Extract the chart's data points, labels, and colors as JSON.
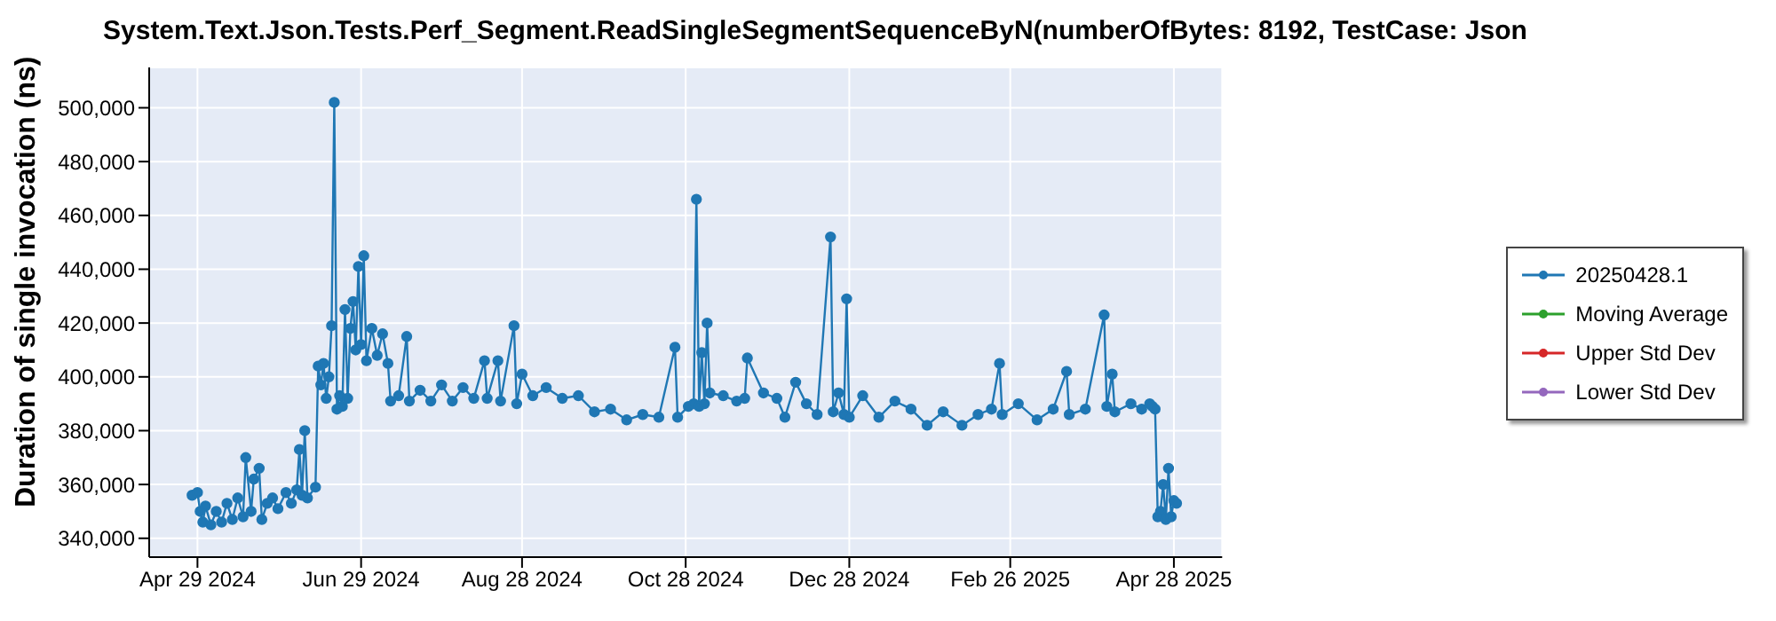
{
  "chart_data": {
    "type": "line",
    "title": "System.Text.Json.Tests.Perf_Segment.ReadSingleSegmentSequenceByN(numberOfBytes: 8192, TestCase: Json",
    "ylabel": "Duration of single invocation (ns)",
    "x": [
      "2024-04-27",
      "2024-04-29",
      "2024-04-30",
      "2024-05-01",
      "2024-05-02",
      "2024-05-04",
      "2024-05-06",
      "2024-05-08",
      "2024-05-10",
      "2024-05-12",
      "2024-05-14",
      "2024-05-16",
      "2024-05-17",
      "2024-05-19",
      "2024-05-20",
      "2024-05-22",
      "2024-05-23",
      "2024-05-25",
      "2024-05-27",
      "2024-05-29",
      "2024-06-01",
      "2024-06-03",
      "2024-06-05",
      "2024-06-06",
      "2024-06-07",
      "2024-06-08",
      "2024-06-09",
      "2024-06-12",
      "2024-06-13",
      "2024-06-14",
      "2024-06-15",
      "2024-06-16",
      "2024-06-17",
      "2024-06-18",
      "2024-06-19",
      "2024-06-20",
      "2024-06-21",
      "2024-06-22",
      "2024-06-23",
      "2024-06-24",
      "2024-06-25",
      "2024-06-26",
      "2024-06-27",
      "2024-06-28",
      "2024-06-29",
      "2024-06-30",
      "2024-07-01",
      "2024-07-03",
      "2024-07-05",
      "2024-07-07",
      "2024-07-09",
      "2024-07-10",
      "2024-07-13",
      "2024-07-16",
      "2024-07-17",
      "2024-07-21",
      "2024-07-25",
      "2024-07-29",
      "2024-08-02",
      "2024-08-06",
      "2024-08-10",
      "2024-08-14",
      "2024-08-15",
      "2024-08-19",
      "2024-08-20",
      "2024-08-25",
      "2024-08-26",
      "2024-08-28",
      "2024-09-01",
      "2024-09-06",
      "2024-09-12",
      "2024-09-18",
      "2024-09-24",
      "2024-09-30",
      "2024-10-06",
      "2024-10-12",
      "2024-10-18",
      "2024-10-24",
      "2024-10-25",
      "2024-10-29",
      "2024-10-31",
      "2024-11-01",
      "2024-11-02",
      "2024-11-03",
      "2024-11-04",
      "2024-11-05",
      "2024-11-06",
      "2024-11-11",
      "2024-11-16",
      "2024-11-19",
      "2024-11-20",
      "2024-11-26",
      "2024-12-01",
      "2024-12-04",
      "2024-12-08",
      "2024-12-12",
      "2024-12-16",
      "2024-12-21",
      "2024-12-22",
      "2024-12-24",
      "2024-12-26",
      "2024-12-27",
      "2024-12-28",
      "2025-01-02",
      "2025-01-08",
      "2025-01-14",
      "2025-01-20",
      "2025-01-26",
      "2025-02-01",
      "2025-02-08",
      "2025-02-14",
      "2025-02-19",
      "2025-02-22",
      "2025-02-23",
      "2025-03-01",
      "2025-03-08",
      "2025-03-14",
      "2025-03-19",
      "2025-03-20",
      "2025-03-26",
      "2025-04-02",
      "2025-04-03",
      "2025-04-05",
      "2025-04-06",
      "2025-04-12",
      "2025-04-16",
      "2025-04-19",
      "2025-04-20",
      "2025-04-21",
      "2025-04-22",
      "2025-04-23",
      "2025-04-24",
      "2025-04-25",
      "2025-04-26",
      "2025-04-27",
      "2025-04-28",
      "2025-04-29"
    ],
    "series": [
      {
        "name": "20250428.1",
        "color": "#1f77b4",
        "values": [
          356000,
          357000,
          350000,
          346000,
          352000,
          345000,
          350000,
          346000,
          353000,
          347000,
          355000,
          348000,
          370000,
          350000,
          362000,
          366000,
          347000,
          353000,
          355000,
          351000,
          357000,
          353000,
          358000,
          373000,
          356000,
          380000,
          355000,
          359000,
          404000,
          397000,
          405000,
          392000,
          400000,
          419000,
          502000,
          388000,
          393000,
          389000,
          425000,
          392000,
          418000,
          428000,
          410000,
          441000,
          412000,
          445000,
          406000,
          418000,
          408000,
          416000,
          405000,
          391000,
          393000,
          415000,
          391000,
          395000,
          391000,
          397000,
          391000,
          396000,
          392000,
          406000,
          392000,
          406000,
          391000,
          419000,
          390000,
          401000,
          393000,
          396000,
          392000,
          393000,
          387000,
          388000,
          384000,
          386000,
          385000,
          411000,
          385000,
          389000,
          390000,
          466000,
          389000,
          409000,
          390000,
          420000,
          394000,
          393000,
          391000,
          392000,
          407000,
          394000,
          392000,
          385000,
          398000,
          390000,
          386000,
          452000,
          387000,
          394000,
          386000,
          429000,
          385000,
          393000,
          385000,
          391000,
          388000,
          382000,
          387000,
          382000,
          386000,
          388000,
          405000,
          386000,
          390000,
          384000,
          388000,
          402000,
          386000,
          388000,
          423000,
          389000,
          401000,
          387000,
          390000,
          388000,
          390000,
          389000,
          388000,
          348000,
          350000,
          360000,
          347000,
          366000,
          348000,
          354000,
          353000
        ]
      },
      {
        "name": "Moving Average",
        "color": "#2ca02c",
        "values": [
          null,
          null,
          null,
          null,
          null,
          null,
          null,
          null,
          null,
          null,
          null,
          null,
          null,
          null,
          null,
          null,
          null,
          null,
          null,
          null,
          null,
          null,
          null,
          null,
          null,
          null,
          null,
          null,
          null,
          null,
          null,
          null,
          null,
          null,
          null,
          null,
          null,
          null,
          null,
          null,
          null,
          null,
          null,
          null,
          null,
          null,
          null,
          null,
          null,
          null,
          null,
          null,
          null,
          null,
          null,
          null,
          null,
          null,
          null,
          null,
          null,
          null,
          null,
          null,
          null,
          null,
          null,
          null,
          null,
          null,
          null,
          null,
          null,
          null,
          null,
          null,
          null,
          null,
          null,
          null,
          null,
          null,
          null,
          null,
          null,
          null,
          null,
          null,
          null,
          null,
          null,
          null,
          null,
          null,
          null,
          null,
          null,
          null,
          null,
          null,
          null,
          null,
          null,
          null,
          null,
          null,
          null,
          null,
          null,
          null,
          null,
          null,
          null,
          null,
          null,
          null,
          null,
          null,
          null,
          null,
          null,
          null,
          null,
          null,
          null,
          null,
          null,
          null,
          null,
          null,
          null,
          null,
          null,
          null,
          null,
          null,
          null
        ]
      },
      {
        "name": "Upper Std Dev",
        "color": "#d62728",
        "values": [
          null,
          null,
          null,
          null,
          null,
          null,
          null,
          null,
          null,
          null,
          null,
          null,
          null,
          null,
          null,
          null,
          null,
          null,
          null,
          null,
          null,
          null,
          null,
          null,
          null,
          null,
          null,
          null,
          null,
          null,
          null,
          null,
          null,
          null,
          null,
          null,
          null,
          null,
          null,
          null,
          null,
          null,
          null,
          null,
          null,
          null,
          null,
          null,
          null,
          null,
          null,
          null,
          null,
          null,
          null,
          null,
          null,
          null,
          null,
          null,
          null,
          null,
          null,
          null,
          null,
          null,
          null,
          null,
          null,
          null,
          null,
          null,
          null,
          null,
          null,
          null,
          null,
          null,
          null,
          null,
          null,
          null,
          null,
          null,
          null,
          null,
          null,
          null,
          null,
          null,
          null,
          null,
          null,
          null,
          null,
          null,
          null,
          null,
          null,
          null,
          null,
          null,
          null,
          null,
          null,
          null,
          null,
          null,
          null,
          null,
          null,
          null,
          null,
          null,
          null,
          null,
          null,
          null,
          null,
          null,
          null,
          null,
          null,
          null,
          null,
          null,
          null,
          null,
          null,
          null,
          null,
          null,
          null,
          null,
          null,
          null,
          null
        ]
      },
      {
        "name": "Lower Std Dev",
        "color": "#9467bd",
        "values": [
          null,
          null,
          null,
          null,
          null,
          null,
          null,
          null,
          null,
          null,
          null,
          null,
          null,
          null,
          null,
          null,
          null,
          null,
          null,
          null,
          null,
          null,
          null,
          null,
          null,
          null,
          null,
          null,
          null,
          null,
          null,
          null,
          null,
          null,
          null,
          null,
          null,
          null,
          null,
          null,
          null,
          null,
          null,
          null,
          null,
          null,
          null,
          null,
          null,
          null,
          null,
          null,
          null,
          null,
          null,
          null,
          null,
          null,
          null,
          null,
          null,
          null,
          null,
          null,
          null,
          null,
          null,
          null,
          null,
          null,
          null,
          null,
          null,
          null,
          null,
          null,
          null,
          null,
          null,
          null,
          null,
          null,
          null,
          null,
          null,
          null,
          null,
          null,
          null,
          null,
          null,
          null,
          null,
          null,
          null,
          null,
          null,
          null,
          null,
          null,
          null,
          null,
          null,
          null,
          null,
          null,
          null,
          null,
          null,
          null,
          null,
          null,
          null,
          null,
          null,
          null,
          null,
          null,
          null,
          null,
          null,
          null,
          null,
          null,
          null,
          null,
          null,
          null,
          null,
          null,
          null,
          null,
          null,
          null,
          null,
          null,
          null
        ]
      }
    ],
    "xlim": [
      "2024-04-11",
      "2025-05-16"
    ],
    "xticks": [
      {
        "value": "2024-04-29",
        "label": "Apr 29 2024"
      },
      {
        "value": "2024-06-29",
        "label": "Jun 29 2024"
      },
      {
        "value": "2024-08-28",
        "label": "Aug 28 2024"
      },
      {
        "value": "2024-10-28",
        "label": "Oct 28 2024"
      },
      {
        "value": "2024-12-28",
        "label": "Dec 28 2024"
      },
      {
        "value": "2025-02-26",
        "label": "Feb 26 2025"
      },
      {
        "value": "2025-04-28",
        "label": "Apr 28 2025"
      }
    ],
    "ylim": [
      333000,
      515000
    ],
    "yticks": [
      {
        "value": 340000,
        "label": "340,000"
      },
      {
        "value": 360000,
        "label": "360,000"
      },
      {
        "value": 380000,
        "label": "380,000"
      },
      {
        "value": 400000,
        "label": "400,000"
      },
      {
        "value": 420000,
        "label": "420,000"
      },
      {
        "value": 440000,
        "label": "440,000"
      },
      {
        "value": 460000,
        "label": "460,000"
      },
      {
        "value": 480000,
        "label": "480,000"
      },
      {
        "value": 500000,
        "label": "500,000"
      }
    ],
    "grid": true,
    "legend": "right",
    "marker": "circle",
    "line_style": "solid"
  }
}
